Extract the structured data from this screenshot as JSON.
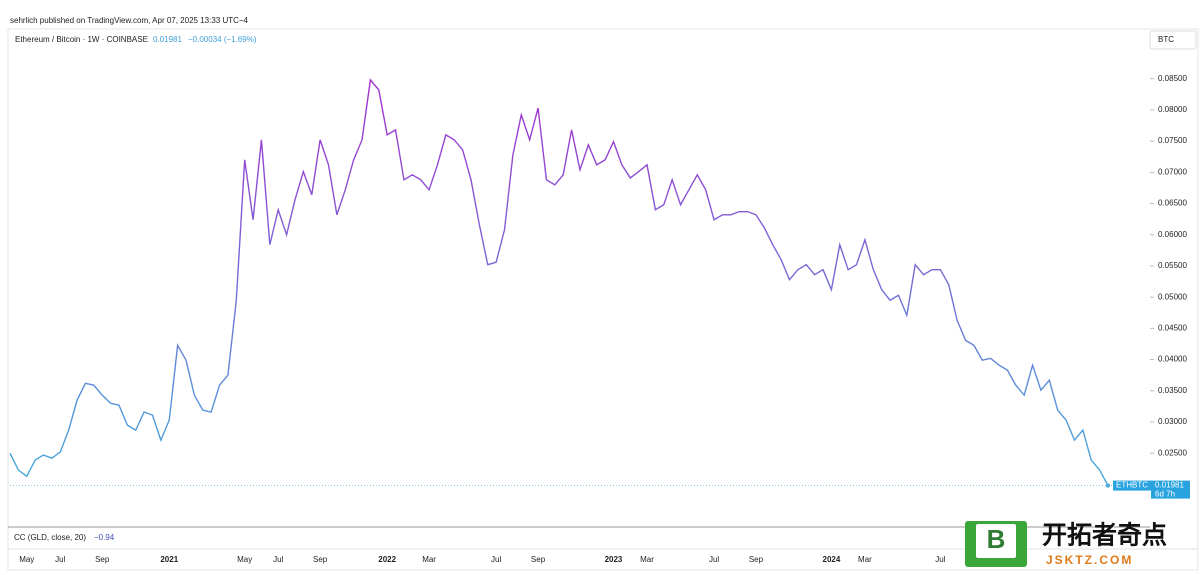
{
  "header": {
    "published": "sehrlich published on TradingView.com, Apr 07, 2025 13:33 UTC−4",
    "symbol": "Ethereum / Bitcoin · 1W · COINBASE",
    "last": "0.01981",
    "change": "−0.00034 (−1.69%)",
    "currency": "BTC",
    "price_tag": "ETHBTC",
    "countdown": "6d 7h",
    "indicator": "CC (GLD, close, 20)",
    "indicator_value": "−0.94"
  },
  "watermark": {
    "logo": "B",
    "name": "开拓者奇点",
    "site": "JSKTZ.COM"
  },
  "chart_data": {
    "type": "line",
    "color_low": "#47a8dc",
    "color_high": "#a62ed0",
    "categories": [
      null,
      null,
      "May",
      null,
      null,
      null,
      "Jul",
      null,
      null,
      null,
      null,
      "Sep",
      null,
      null,
      null,
      null,
      null,
      null,
      null,
      "2021",
      null,
      null,
      null,
      null,
      null,
      null,
      null,
      null,
      "May",
      null,
      null,
      null,
      "Jul",
      null,
      null,
      null,
      null,
      "Sep",
      null,
      null,
      null,
      null,
      null,
      null,
      null,
      "2022",
      null,
      null,
      null,
      null,
      "Mar",
      null,
      null,
      null,
      null,
      null,
      null,
      null,
      "Jul",
      null,
      null,
      null,
      null,
      "Sep",
      null,
      null,
      null,
      null,
      null,
      null,
      null,
      null,
      "2023",
      null,
      null,
      null,
      "Mar",
      null,
      null,
      null,
      null,
      null,
      null,
      null,
      "Jul",
      null,
      null,
      null,
      null,
      "Sep",
      null,
      null,
      null,
      null,
      null,
      null,
      null,
      null,
      "2024",
      null,
      null,
      null,
      "Mar",
      null,
      null,
      null,
      null,
      null,
      null,
      null,
      null,
      "Jul",
      null,
      null,
      null,
      null,
      null,
      null,
      null,
      null,
      null,
      null,
      null,
      null,
      null,
      null,
      null,
      null,
      null,
      null,
      null,
      null
    ],
    "values": [
      0.025,
      0.0223,
      0.0213,
      0.0239,
      0.0247,
      0.0242,
      0.0252,
      0.0287,
      0.0335,
      0.0362,
      0.0359,
      0.0343,
      0.033,
      0.0327,
      0.0295,
      0.0287,
      0.0316,
      0.0311,
      0.0271,
      0.0303,
      0.0423,
      0.0399,
      0.0343,
      0.0319,
      0.0316,
      0.0359,
      0.0375,
      0.0495,
      0.072,
      0.0624,
      0.0752,
      0.0584,
      0.064,
      0.06,
      0.0656,
      0.0701,
      0.0664,
      0.0752,
      0.0712,
      0.0632,
      0.0672,
      0.072,
      0.0752,
      0.0848,
      0.0832,
      0.076,
      0.0768,
      0.0688,
      0.0696,
      0.0688,
      0.0672,
      0.0712,
      0.076,
      0.0752,
      0.0736,
      0.0688,
      0.0616,
      0.0552,
      0.0556,
      0.0608,
      0.0728,
      0.0792,
      0.0752,
      0.0803,
      0.0688,
      0.068,
      0.0696,
      0.0768,
      0.0704,
      0.0744,
      0.0712,
      0.072,
      0.0749,
      0.0712,
      0.0691,
      0.0701,
      0.0712,
      0.064,
      0.0648,
      0.0688,
      0.0648,
      0.0672,
      0.0696,
      0.0672,
      0.0624,
      0.0632,
      0.0632,
      0.0637,
      0.0637,
      0.0632,
      0.0611,
      0.0584,
      0.056,
      0.0528,
      0.0544,
      0.0552,
      0.0536,
      0.0544,
      0.0512,
      0.0584,
      0.0544,
      0.0552,
      0.0592,
      0.0544,
      0.0512,
      0.0495,
      0.0503,
      0.0471,
      0.0552,
      0.0536,
      0.0544,
      0.0544,
      0.052,
      0.0463,
      0.0431,
      0.0423,
      0.0399,
      0.0402,
      0.0391,
      0.0383,
      0.0359,
      0.0343,
      0.0391,
      0.0351,
      0.0367,
      0.0319,
      0.0303,
      0.0271,
      0.0287,
      0.0239,
      0.0223,
      0.01981
    ],
    "ylim": [
      0.0143,
      0.0928
    ],
    "yticks": [
      {
        "value": 0.025,
        "label": "0.02500"
      },
      {
        "value": 0.03,
        "label": "0.03000"
      },
      {
        "value": 0.035,
        "label": "0.03500"
      },
      {
        "value": 0.04,
        "label": "0.04000"
      },
      {
        "value": 0.045,
        "label": "0.04500"
      },
      {
        "value": 0.05,
        "label": "0.05000"
      },
      {
        "value": 0.055,
        "label": "0.05500"
      },
      {
        "value": 0.06,
        "label": "0.06000"
      },
      {
        "value": 0.065,
        "label": "0.06500"
      },
      {
        "value": 0.07,
        "label": "0.07000"
      },
      {
        "value": 0.075,
        "label": "0.07500"
      },
      {
        "value": 0.08,
        "label": "0.08000"
      },
      {
        "value": 0.085,
        "label": "0.08500"
      }
    ]
  }
}
